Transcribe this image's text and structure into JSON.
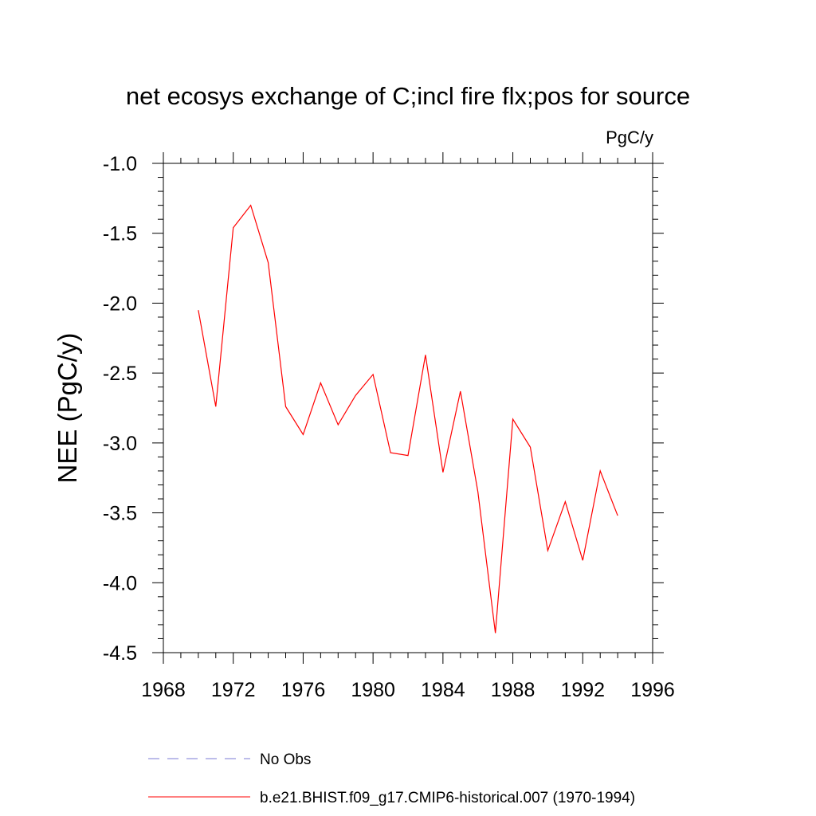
{
  "chart_data": {
    "type": "line",
    "title": "net ecosys exchange of C;incl fire flx;pos for source",
    "units_label": "PgC/y",
    "xlabel": "",
    "ylabel": "NEE  (PgC/y)",
    "xlim": [
      1968,
      1996
    ],
    "ylim": [
      -4.5,
      -1.0
    ],
    "x_ticks": [
      1968,
      1972,
      1976,
      1980,
      1984,
      1988,
      1992,
      1996
    ],
    "x_tick_labels": [
      "1968",
      "1972",
      "1976",
      "1980",
      "1984",
      "1988",
      "1992",
      "1996"
    ],
    "y_ticks": [
      -1.0,
      -1.5,
      -2.0,
      -2.5,
      -3.0,
      -3.5,
      -4.0,
      -4.5
    ],
    "y_tick_labels": [
      "-1.0",
      "-1.5",
      "-2.0",
      "-2.5",
      "-3.0",
      "-3.5",
      "-4.0",
      "-4.5"
    ],
    "grid": false,
    "legend_position": "bottom",
    "series": [
      {
        "name": "No Obs",
        "color": "#7b7bd6",
        "dash": "dashed",
        "x": [],
        "values": []
      },
      {
        "name": "b.e21.BHIST.f09_g17.CMIP6-historical.007 (1970-1994)",
        "color": "#ff0000",
        "dash": "solid",
        "x": [
          1970,
          1971,
          1972,
          1973,
          1974,
          1975,
          1976,
          1977,
          1978,
          1979,
          1980,
          1981,
          1982,
          1983,
          1984,
          1985,
          1986,
          1987,
          1988,
          1989,
          1990,
          1991,
          1992,
          1993,
          1994
        ],
        "values": [
          -2.05,
          -2.74,
          -1.46,
          -1.3,
          -1.71,
          -2.74,
          -2.94,
          -2.57,
          -2.87,
          -2.66,
          -2.51,
          -3.07,
          -3.09,
          -2.37,
          -3.21,
          -2.63,
          -3.35,
          -4.36,
          -2.83,
          -3.03,
          -3.77,
          -3.42,
          -3.84,
          -3.2,
          -3.52
        ]
      }
    ]
  }
}
